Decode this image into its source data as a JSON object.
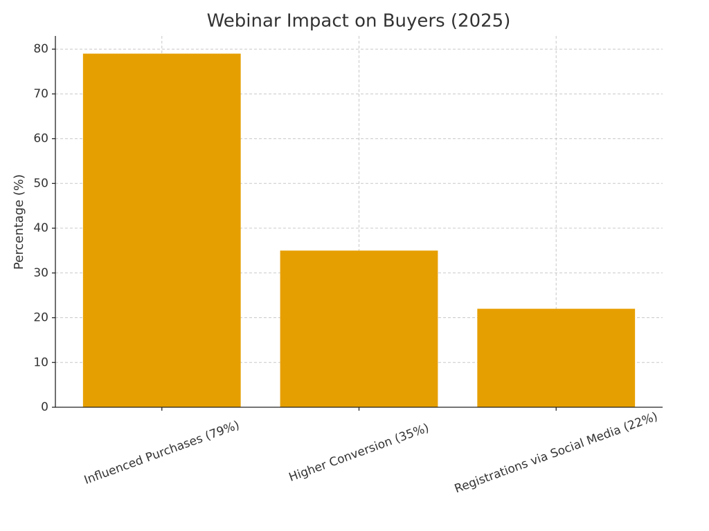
{
  "chart_data": {
    "type": "bar",
    "title": "Webinar Impact on Buyers (2025)",
    "ylabel": "Percentage (%)",
    "categories": [
      "Influenced Purchases (79%)",
      "Higher Conversion (35%)",
      "Registrations via Social Media (22%)"
    ],
    "values": [
      79,
      35,
      22
    ],
    "color": "#e69f00",
    "ylim": [
      0,
      82.95
    ],
    "yticks": [
      0,
      10,
      20,
      30,
      40,
      50,
      60,
      70,
      80
    ],
    "grid": true
  }
}
